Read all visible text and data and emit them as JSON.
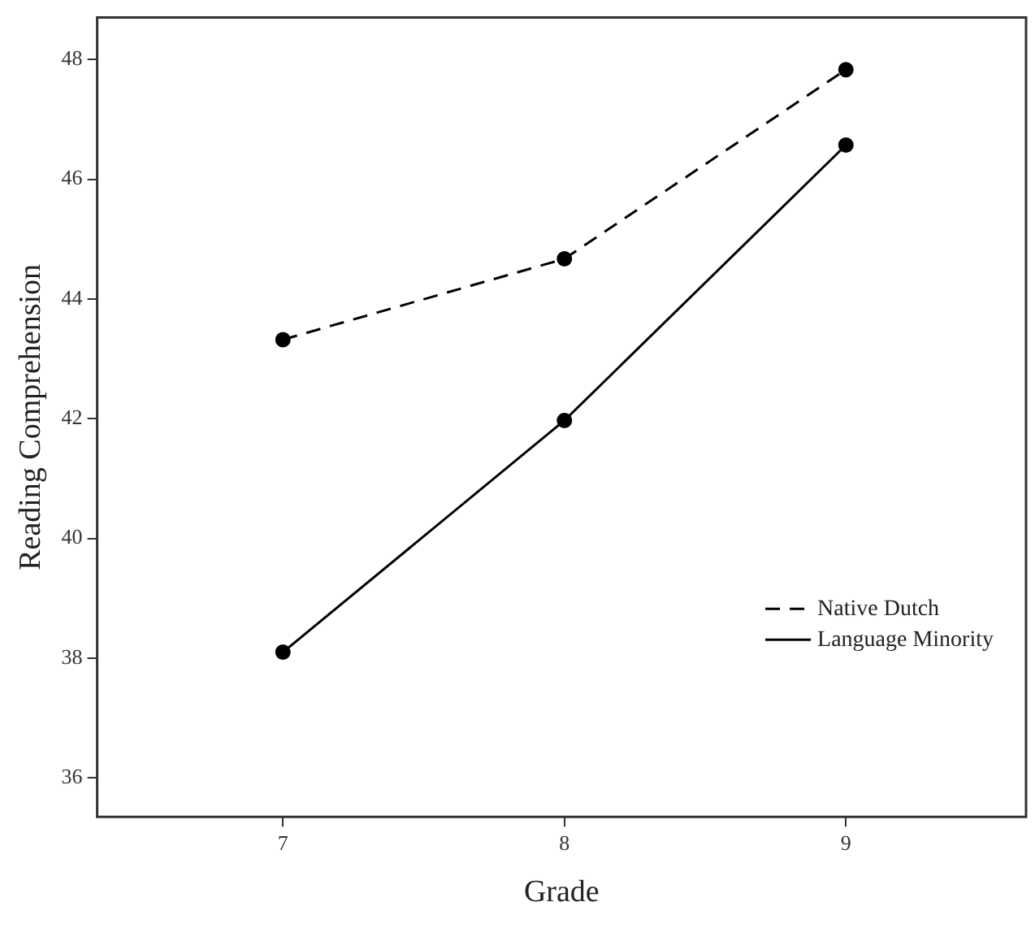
{
  "chart_data": {
    "type": "line",
    "xlabel": "Grade",
    "ylabel": "Reading Comprehension",
    "x": [
      7,
      8,
      9
    ],
    "series": [
      {
        "name": "Native Dutch",
        "color": "#000000",
        "values": [
          43.32,
          44.67,
          47.83
        ],
        "line_style": "dashed"
      },
      {
        "name": "Language Minority",
        "color": "#000000",
        "values": [
          38.1,
          41.97,
          46.57
        ],
        "line_style": "solid"
      }
    ],
    "xlim": [
      6.34,
      9.64
    ],
    "xticks": [
      7,
      8,
      9
    ],
    "ylim": [
      35.35,
      48.7
    ],
    "yticks": [
      36,
      38,
      40,
      42,
      44,
      46,
      48
    ],
    "grid": false,
    "legend": "bottom right",
    "marker": "circle"
  }
}
